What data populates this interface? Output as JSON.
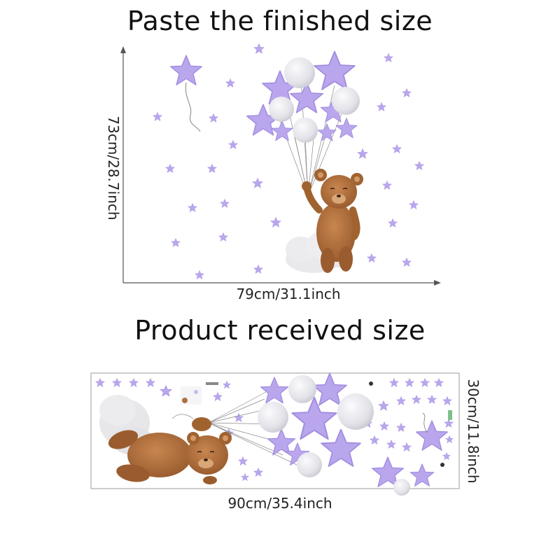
{
  "titles": {
    "finished": "Paste the finished size",
    "received": "Product received size"
  },
  "dimensions": {
    "finished_width": "79cm/31.1inch",
    "finished_height": "73cm/28.7inch",
    "received_width": "90cm/35.4inch",
    "received_height": "30cm/11.8inch"
  },
  "colors": {
    "star": "#b9a6ec",
    "star_dark": "#9a82dd",
    "balloon": "#e4e4ea",
    "bear": "#b0703f",
    "bear_dark": "#8a5027",
    "cloud": "#e8e8ea",
    "axis": "#555555"
  }
}
